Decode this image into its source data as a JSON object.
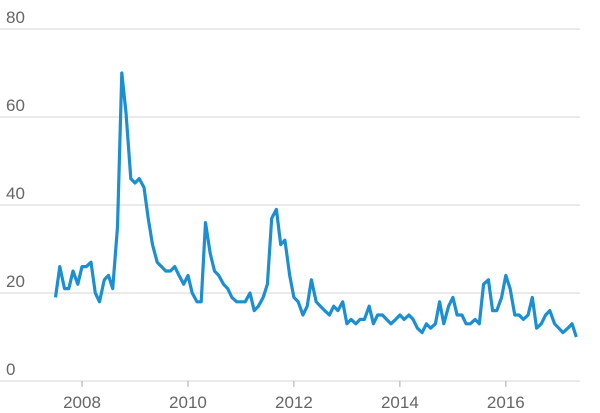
{
  "chart_data": {
    "type": "line",
    "x": [
      2007.5,
      2007.58,
      2007.67,
      2007.75,
      2007.83,
      2007.92,
      2008,
      2008.08,
      2008.17,
      2008.25,
      2008.33,
      2008.42,
      2008.5,
      2008.58,
      2008.67,
      2008.75,
      2008.83,
      2008.92,
      2009,
      2009.08,
      2009.17,
      2009.25,
      2009.33,
      2009.42,
      2009.5,
      2009.58,
      2009.67,
      2009.75,
      2009.83,
      2009.92,
      2010,
      2010.08,
      2010.17,
      2010.25,
      2010.33,
      2010.42,
      2010.5,
      2010.58,
      2010.67,
      2010.75,
      2010.83,
      2010.92,
      2011,
      2011.08,
      2011.17,
      2011.25,
      2011.33,
      2011.42,
      2011.5,
      2011.58,
      2011.67,
      2011.75,
      2011.83,
      2011.92,
      2012,
      2012.08,
      2012.17,
      2012.25,
      2012.33,
      2012.42,
      2012.5,
      2012.58,
      2012.67,
      2012.75,
      2012.83,
      2012.92,
      2013,
      2013.08,
      2013.17,
      2013.25,
      2013.33,
      2013.42,
      2013.5,
      2013.58,
      2013.67,
      2013.75,
      2013.83,
      2013.92,
      2014,
      2014.08,
      2014.17,
      2014.25,
      2014.33,
      2014.42,
      2014.5,
      2014.58,
      2014.67,
      2014.75,
      2014.83,
      2014.92,
      2015,
      2015.08,
      2015.17,
      2015.25,
      2015.33,
      2015.42,
      2015.5,
      2015.58,
      2015.67,
      2015.75,
      2015.83,
      2015.92,
      2016,
      2016.08,
      2016.17,
      2016.25,
      2016.33,
      2016.42,
      2016.5,
      2016.58,
      2016.67,
      2016.75,
      2016.83,
      2016.92,
      2017,
      2017.08,
      2017.17,
      2017.25,
      2017.33
    ],
    "values": [
      19,
      26,
      21,
      21,
      25,
      22,
      26,
      26,
      27,
      20,
      18,
      23,
      24,
      21,
      35,
      70,
      61,
      46,
      45,
      46,
      44,
      37,
      31,
      27,
      26,
      25,
      25,
      26,
      24,
      22,
      24,
      20,
      18,
      18,
      36,
      29,
      25,
      24,
      22,
      21,
      19,
      18,
      18,
      18,
      20,
      16,
      17,
      19,
      22,
      37,
      39,
      31,
      32,
      24,
      19,
      18,
      15,
      17,
      23,
      18,
      17,
      16,
      15,
      17,
      16,
      18,
      13,
      14,
      13,
      14,
      14,
      17,
      13,
      15,
      15,
      14,
      13,
      14,
      15,
      14,
      15,
      14,
      12,
      11,
      13,
      12,
      13,
      18,
      13,
      17,
      19,
      15,
      15,
      13,
      13,
      14,
      13,
      22,
      23,
      16,
      16,
      19,
      24,
      21,
      15,
      15,
      14,
      15,
      19,
      12,
      13,
      15,
      16,
      13,
      12,
      11,
      12,
      13,
      10
    ],
    "color": "#1b8fd2",
    "xlim": [
      2007.49,
      2017.4
    ],
    "xticks": [
      2008,
      2010,
      2012,
      2014,
      2016
    ],
    "ylim": [
      0,
      80
    ],
    "yticks": [
      0,
      20,
      40,
      60,
      80
    ],
    "grid": true
  }
}
